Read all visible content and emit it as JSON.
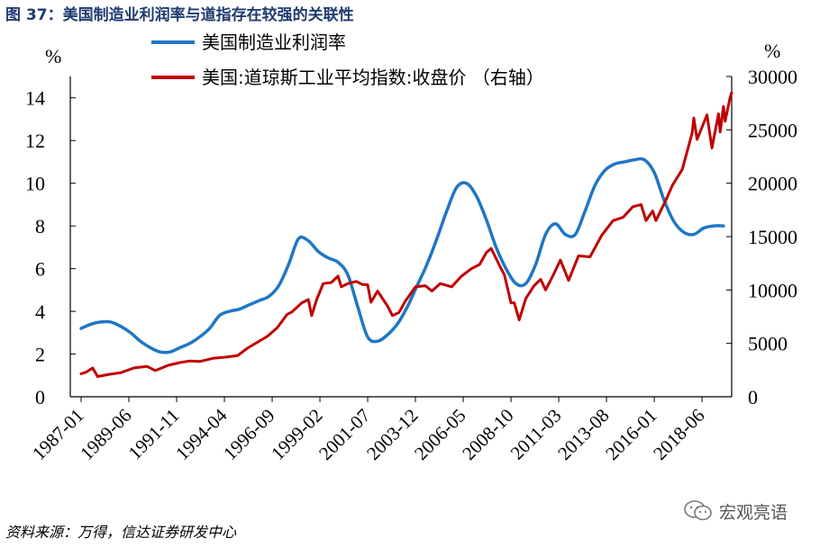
{
  "header": {
    "title": "图 37：美国制造业利润率与道指存在较强的关联性"
  },
  "footer": {
    "source": "资料来源：万得，信达证券研发中心",
    "watermark": "宏观亮语"
  },
  "chart_data": {
    "type": "line",
    "title": "图 37：美国制造业利润率与道指存在较强的关联性",
    "xlabel": "",
    "ylabel_left": "%",
    "ylabel_right": "%",
    "x_tick_labels": [
      "1987-01",
      "1989-06",
      "1991-11",
      "1994-04",
      "1996-09",
      "1999-02",
      "2001-07",
      "2003-12",
      "2006-05",
      "2008-10",
      "2011-03",
      "2013-08",
      "2016-01",
      "2018-06"
    ],
    "x_range": [
      "1987-01",
      "2019-12"
    ],
    "ylim_left": [
      0,
      15
    ],
    "yticks_left": [
      0,
      2,
      4,
      6,
      8,
      10,
      12,
      14
    ],
    "ylim_right": [
      0,
      30000
    ],
    "yticks_right": [
      0,
      5000,
      10000,
      15000,
      20000,
      25000,
      30000
    ],
    "legend_position": "top",
    "grid": false,
    "series": [
      {
        "name": "美国制造业利润率",
        "axis": "left",
        "color": "#1f77c4",
        "points": [
          [
            "1987-01",
            3.2
          ],
          [
            "1987-07",
            3.4
          ],
          [
            "1988-01",
            3.5
          ],
          [
            "1988-07",
            3.5
          ],
          [
            "1989-01",
            3.3
          ],
          [
            "1989-07",
            3.0
          ],
          [
            "1990-01",
            2.6
          ],
          [
            "1990-07",
            2.3
          ],
          [
            "1991-01",
            2.1
          ],
          [
            "1991-07",
            2.1
          ],
          [
            "1992-01",
            2.3
          ],
          [
            "1992-07",
            2.5
          ],
          [
            "1993-01",
            2.8
          ],
          [
            "1993-07",
            3.2
          ],
          [
            "1994-01",
            3.8
          ],
          [
            "1994-07",
            4.0
          ],
          [
            "1995-01",
            4.1
          ],
          [
            "1995-07",
            4.3
          ],
          [
            "1996-01",
            4.5
          ],
          [
            "1996-07",
            4.7
          ],
          [
            "1997-01",
            5.2
          ],
          [
            "1997-07",
            6.2
          ],
          [
            "1998-01",
            7.4
          ],
          [
            "1998-07",
            7.3
          ],
          [
            "1999-01",
            6.8
          ],
          [
            "1999-07",
            6.5
          ],
          [
            "2000-01",
            6.3
          ],
          [
            "2000-07",
            5.7
          ],
          [
            "2001-01",
            4.2
          ],
          [
            "2001-07",
            2.8
          ],
          [
            "2002-01",
            2.6
          ],
          [
            "2002-07",
            2.9
          ],
          [
            "2003-01",
            3.4
          ],
          [
            "2003-07",
            4.2
          ],
          [
            "2004-01",
            5.2
          ],
          [
            "2004-07",
            6.2
          ],
          [
            "2005-01",
            7.4
          ],
          [
            "2005-07",
            8.7
          ],
          [
            "2006-01",
            9.8
          ],
          [
            "2006-07",
            10.0
          ],
          [
            "2007-01",
            9.4
          ],
          [
            "2007-07",
            8.3
          ],
          [
            "2008-01",
            7.0
          ],
          [
            "2008-07",
            6.0
          ],
          [
            "2009-01",
            5.3
          ],
          [
            "2009-07",
            5.3
          ],
          [
            "2010-01",
            6.2
          ],
          [
            "2010-07",
            7.6
          ],
          [
            "2011-01",
            8.1
          ],
          [
            "2011-07",
            7.6
          ],
          [
            "2012-01",
            7.6
          ],
          [
            "2012-07",
            8.7
          ],
          [
            "2013-01",
            9.9
          ],
          [
            "2013-07",
            10.6
          ],
          [
            "2014-01",
            10.9
          ],
          [
            "2014-07",
            11.0
          ],
          [
            "2015-01",
            11.1
          ],
          [
            "2015-07",
            11.1
          ],
          [
            "2016-01",
            10.5
          ],
          [
            "2016-07",
            9.2
          ],
          [
            "2017-01",
            8.2
          ],
          [
            "2017-07",
            7.7
          ],
          [
            "2018-01",
            7.6
          ],
          [
            "2018-07",
            7.9
          ],
          [
            "2019-01",
            8.0
          ],
          [
            "2019-07",
            8.0
          ]
        ]
      },
      {
        "name": "美国:道琼斯工业平均指数:收盘价 （右轴）",
        "axis": "right",
        "color": "#c00000",
        "points": [
          [
            "1987-01",
            2160
          ],
          [
            "1987-04",
            2300
          ],
          [
            "1987-08",
            2700
          ],
          [
            "1987-11",
            1900
          ],
          [
            "1988-06",
            2100
          ],
          [
            "1989-01",
            2250
          ],
          [
            "1989-09",
            2700
          ],
          [
            "1990-05",
            2850
          ],
          [
            "1990-10",
            2450
          ],
          [
            "1991-06",
            2950
          ],
          [
            "1992-01",
            3200
          ],
          [
            "1992-07",
            3350
          ],
          [
            "1993-01",
            3300
          ],
          [
            "1993-09",
            3600
          ],
          [
            "1994-04",
            3700
          ],
          [
            "1994-12",
            3850
          ],
          [
            "1995-06",
            4550
          ],
          [
            "1995-12",
            5100
          ],
          [
            "1996-06",
            5650
          ],
          [
            "1996-12",
            6450
          ],
          [
            "1997-06",
            7700
          ],
          [
            "1997-09",
            7950
          ],
          [
            "1998-03",
            8800
          ],
          [
            "1998-07",
            9100
          ],
          [
            "1998-09",
            7600
          ],
          [
            "1998-12",
            9100
          ],
          [
            "1999-04",
            10600
          ],
          [
            "1999-09",
            10700
          ],
          [
            "2000-01",
            11300
          ],
          [
            "2000-03",
            10300
          ],
          [
            "2000-07",
            10600
          ],
          [
            "2000-12",
            10800
          ],
          [
            "2001-04",
            10500
          ],
          [
            "2001-07",
            10500
          ],
          [
            "2001-09",
            8850
          ],
          [
            "2002-01",
            9900
          ],
          [
            "2002-07",
            8500
          ],
          [
            "2002-10",
            7600
          ],
          [
            "2003-02",
            7900
          ],
          [
            "2003-06",
            9000
          ],
          [
            "2003-12",
            10300
          ],
          [
            "2004-06",
            10400
          ],
          [
            "2004-10",
            9900
          ],
          [
            "2005-03",
            10600
          ],
          [
            "2005-10",
            10300
          ],
          [
            "2006-04",
            11300
          ],
          [
            "2006-10",
            12000
          ],
          [
            "2007-03",
            12400
          ],
          [
            "2007-07",
            13500
          ],
          [
            "2007-10",
            13900
          ],
          [
            "2008-03",
            12300
          ],
          [
            "2008-06",
            11400
          ],
          [
            "2008-10",
            8800
          ],
          [
            "2008-12",
            8800
          ],
          [
            "2009-03",
            7200
          ],
          [
            "2009-07",
            9200
          ],
          [
            "2009-12",
            10400
          ],
          [
            "2010-04",
            11000
          ],
          [
            "2010-07",
            10000
          ],
          [
            "2010-12",
            11500
          ],
          [
            "2011-04",
            12800
          ],
          [
            "2011-09",
            10900
          ],
          [
            "2012-03",
            13200
          ],
          [
            "2012-10",
            13100
          ],
          [
            "2013-05",
            15100
          ],
          [
            "2013-12",
            16500
          ],
          [
            "2014-06",
            16800
          ],
          [
            "2014-12",
            17800
          ],
          [
            "2015-05",
            18000
          ],
          [
            "2015-08",
            16500
          ],
          [
            "2015-12",
            17400
          ],
          [
            "2016-02",
            16500
          ],
          [
            "2016-08",
            18400
          ],
          [
            "2016-12",
            19800
          ],
          [
            "2017-06",
            21300
          ],
          [
            "2017-12",
            24700
          ],
          [
            "2018-01",
            26100
          ],
          [
            "2018-03",
            24100
          ],
          [
            "2018-09",
            26400
          ],
          [
            "2018-12",
            23300
          ],
          [
            "2019-04",
            26500
          ],
          [
            "2019-05",
            24800
          ],
          [
            "2019-07",
            27200
          ],
          [
            "2019-08",
            25800
          ],
          [
            "2019-11",
            28000
          ],
          [
            "2019-12",
            28500
          ]
        ]
      }
    ]
  }
}
